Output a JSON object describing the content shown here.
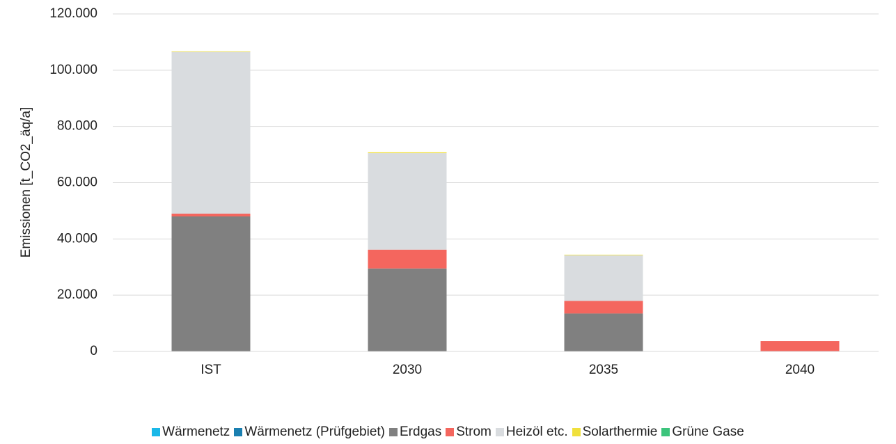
{
  "chart_data": {
    "type": "stacked_bar",
    "y_label": "Emissionen [t_CO2_äq/a]",
    "categories": [
      "IST",
      "2030",
      "2035",
      "2040"
    ],
    "series": [
      {
        "name": "Wärmenetz",
        "color": "#1ab8e8",
        "values": [
          0,
          0,
          0,
          0
        ]
      },
      {
        "name": "Wärmenetz (Prüfgebiet)",
        "color": "#1a7fb0",
        "values": [
          0,
          0,
          0,
          0
        ]
      },
      {
        "name": "Erdgas",
        "color": "#808080",
        "values": [
          48000,
          29500,
          13500,
          0
        ]
      },
      {
        "name": "Strom",
        "color": "#f4665e",
        "values": [
          1000,
          6700,
          4500,
          3700
        ]
      },
      {
        "name": "Heizöl etc.",
        "color": "#d9dcdf",
        "values": [
          57500,
          34300,
          16200,
          0
        ]
      },
      {
        "name": "Solarthermie",
        "color": "#f0e03c",
        "values": [
          200,
          300,
          200,
          0
        ]
      },
      {
        "name": "Grüne Gase",
        "color": "#3cc47c",
        "values": [
          0,
          0,
          0,
          0
        ]
      }
    ],
    "ylim": [
      0,
      120000
    ],
    "yticks": [
      0,
      {
        "value": 20000,
        "label": "20.000"
      },
      {
        "value": 40000,
        "label": "40.000"
      },
      {
        "value": 60000,
        "label": "60.000"
      },
      {
        "value": 80000,
        "label": "80.000"
      },
      {
        "value": 100000,
        "label": "100.000"
      },
      {
        "value": 120000,
        "label": "120.000"
      }
    ],
    "grid": true,
    "legend": "bottom"
  }
}
